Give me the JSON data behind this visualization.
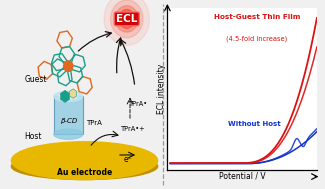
{
  "bg_color": "#f0f0f0",
  "left_bg": "#ffffff",
  "right_bg": "#ffffff",
  "divider_color": "#999999",
  "ecl_label": "ECL",
  "guest_label": "Guest",
  "host_label": "Host",
  "bcd_label": "β-CD",
  "au_label": "Au electrode",
  "tpra_label": "TPrA",
  "tpra_rad_label": "TPrA•",
  "tpra_radrad_label": "TPrA•+",
  "eminus_label": "e⁻",
  "ecl_intensity_label": "ECL intensity",
  "potential_label": "Potential / V",
  "host_guest_label1": "Host-Guest Thin Film",
  "host_guest_label2": "(4.5-fold increase)",
  "without_host_label": "Without Host",
  "red_color": "#dd1111",
  "blue_color": "#1133cc",
  "gold_color": "#e8b800",
  "gold_dark": "#c09000",
  "gold_edge": "#a07800",
  "teal_color": "#1a9e8a",
  "orange_ir": "#e06820",
  "bcd_blue": "#88c8e0",
  "bcd_light": "#c0e4f0",
  "arrow_color": "#111111"
}
